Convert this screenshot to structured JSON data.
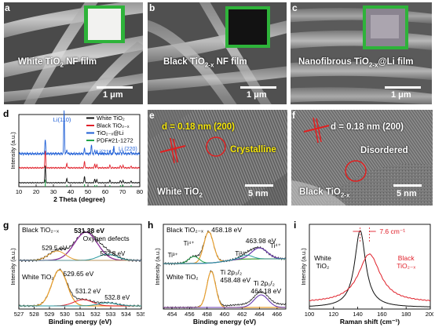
{
  "panels": {
    "a": {
      "letter": "a",
      "caption": "White TiO",
      "sub": "2",
      "tail": " NF film",
      "scale": "1 μm"
    },
    "b": {
      "letter": "b",
      "caption": "Black TiO",
      "sub": "2-x",
      "tail": " NF film",
      "scale": "1 μm"
    },
    "c": {
      "letter": "c",
      "caption": "Nanofibrous TiO",
      "sub": "2-x",
      "tail": "@Li film",
      "scale": "1 μm"
    },
    "d": {
      "letter": "d"
    },
    "e": {
      "letter": "e",
      "d_spacing": "d = 0.18 nm  (200)",
      "phase": "Crystalline",
      "sample": "White TiO",
      "sample_sub": "2",
      "scale": "5 nm"
    },
    "f": {
      "letter": "f",
      "d_spacing": "d = 0.18 nm  (200)",
      "phase": "Disordered",
      "sample": "Black TiO",
      "sample_sub": "2-x",
      "scale": "5 nm"
    },
    "g": {
      "letter": "g"
    },
    "h": {
      "letter": "h"
    },
    "i": {
      "letter": "i"
    }
  },
  "colors": {
    "black": "#111111",
    "red": "#e0202a",
    "blue": "#1f5fd6",
    "green": "#22a34a",
    "purple": "#8a2a9a",
    "orange": "#e8a030",
    "teal": "#2a9aa0",
    "violet": "#6a3ab0",
    "inset_green": "#2eb33a"
  },
  "chart_data": [
    {
      "id": "d",
      "type": "line",
      "xlabel": "2 Theta (degree)",
      "ylabel": "Intensity (a.u.)",
      "xlim": [
        10,
        80
      ],
      "xticks": [
        10,
        20,
        30,
        40,
        50,
        60,
        70,
        80
      ],
      "legend": [
        "White TiO₂",
        "Black TiO₂₋ₓ",
        "TiO₂₋ₓ@Li",
        "PDF#21-1272"
      ],
      "legend_colors": [
        "#111111",
        "#e0202a",
        "#1f5fd6",
        "#22a34a"
      ],
      "annotations": [
        "Li(110)",
        "Li(211)",
        "Li (220)"
      ],
      "peaks_anatase": [
        25.3,
        37.8,
        48.0,
        53.9,
        55.1,
        62.7,
        68.8,
        70.3,
        75.0
      ],
      "peaks_li": [
        36.2,
        52.0,
        65.0
      ]
    },
    {
      "id": "g",
      "type": "line",
      "xlabel": "Binding energy (eV)",
      "ylabel": "Intensity (a.u.)",
      "xlim": [
        527,
        535
      ],
      "xticks": [
        527,
        528,
        529,
        530,
        531,
        532,
        533,
        534,
        535
      ],
      "series_labels": [
        "Black TiO₂₋ₓ",
        "White TiO₂"
      ],
      "peaks_top": [
        529.5,
        531.38,
        532.8
      ],
      "peaks_bottom": [
        529.65,
        531.2,
        532.8
      ],
      "labels": [
        "531.38 eV",
        "Oxygen defects",
        "529.5 eV",
        "532.8 eV",
        "529.65 eV",
        "531.2 eV",
        "532.8 eV"
      ]
    },
    {
      "id": "h",
      "type": "line",
      "xlabel": "Binding energy (eV)",
      "ylabel": "Intensity (a.u.)",
      "xlim": [
        453,
        467
      ],
      "xticks": [
        454,
        456,
        458,
        460,
        462,
        464,
        466
      ],
      "series_labels": [
        "Black TiO₂₋ₓ",
        "White TiO₂"
      ],
      "peaks_top": [
        456.5,
        458.18,
        462.5,
        463.98
      ],
      "peaks_bottom": [
        458.48,
        464.18
      ],
      "labels": [
        "458.18 eV",
        "463.98 eV",
        "Ti³⁺",
        "Ti⁴⁺",
        "Ti³⁺",
        "Ti⁴⁺",
        "458.48 eV",
        "Ti 2p₃/₂",
        "Ti 2p₁/₂",
        "464.18 eV"
      ]
    },
    {
      "id": "i",
      "type": "line",
      "xlabel": "Raman shift (cm⁻¹)",
      "ylabel": "Intensity (a.u.)",
      "xlim": [
        100,
        200
      ],
      "xticks": [
        100,
        120,
        140,
        160,
        180,
        200
      ],
      "series": [
        {
          "name": "White TiO₂",
          "peak": 142
        },
        {
          "name": "Black TiO₂₋ₓ",
          "peak": 149.6
        }
      ],
      "annotation": "7.6 cm⁻¹"
    }
  ]
}
